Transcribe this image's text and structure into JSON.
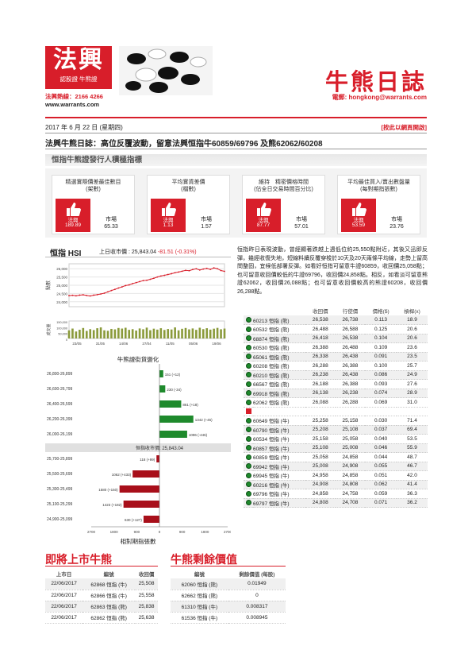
{
  "header": {
    "logo_title": "法興",
    "logo_sub": "認股證 牛熊證",
    "hotline": "法興熱線：2166 4266",
    "website": "www.warrants.com",
    "title": "牛熊日誌",
    "email": "電郵: hongkong@warrants.com",
    "date": "2017 年 6 月 22 日 (星期四)",
    "web_link": "[按此以網頁開啟]",
    "headline": "法興牛熊日誌：高位反覆波動，留意法興恒指牛60859/69796 及熊62062/60208"
  },
  "indicators": {
    "section_title": "恒指牛熊證發行人積極指標",
    "cards": [
      {
        "label": "精選實際價差最佳數目\n(架數)",
        "sg_label": "法興",
        "sg_value": "189.89",
        "market_label": "市場",
        "market_value": "65.33"
      },
      {
        "label": "平均實貨差價\n(檔數)",
        "sg_label": "法興",
        "sg_value": "1.13",
        "market_label": "市場",
        "market_value": "1.57"
      },
      {
        "label": "維持　精密價格時間\n(佔全日交易時間百分比)",
        "sg_label": "法興",
        "sg_value": "87.77",
        "market_label": "市場",
        "market_value": "57.01"
      },
      {
        "label": "平均最佳買入/賣出數盤量\n(每對期指張數)",
        "sg_label": "法興",
        "sg_value": "53.59",
        "market_label": "市場",
        "market_value": "23.76"
      }
    ]
  },
  "hsi": {
    "name": "恒指 HSI",
    "close_label": "上日收市價 : 25,843.04",
    "change": "-81.51 (-0.31%)"
  },
  "chart_data": [
    {
      "type": "line",
      "title": "",
      "ylabel": "點數",
      "x_ticks": [
        "23/05",
        "31/05",
        "14/06",
        "27/04",
        "11/05",
        "05/06",
        "19/06"
      ],
      "y_ticks": [
        24000,
        24500,
        25000,
        25500,
        26000
      ],
      "ylim": [
        23700,
        26300
      ],
      "values": [
        24370,
        24390,
        24360,
        24400,
        24420,
        24380,
        24350,
        24400,
        24430,
        24470,
        24520,
        24600,
        24680,
        24750,
        24830,
        24900,
        24980,
        25020,
        25100,
        25160,
        25220,
        25280,
        25300,
        25360,
        25420,
        25500,
        25560,
        25600,
        25650,
        25700,
        25760,
        25800,
        25850,
        25900,
        25880,
        25950,
        26000,
        25920,
        25980,
        26020,
        25960,
        26050,
        26000,
        25890,
        25843
      ],
      "volume_ylabel": "成交量",
      "volume_ticks": [
        "150,000",
        "100,000",
        "50,000",
        "0"
      ],
      "volume": [
        70,
        85,
        60,
        75,
        90,
        65,
        80,
        72,
        88,
        95,
        70,
        66,
        82,
        78,
        90,
        85,
        92,
        74,
        80,
        68,
        86,
        79,
        93,
        71,
        84,
        76,
        88,
        73,
        81,
        77,
        95,
        70,
        83,
        90,
        78,
        86,
        74,
        92,
        80,
        88,
        76,
        84,
        91,
        79,
        85
      ]
    },
    {
      "type": "bar",
      "title": "牛熊證街貨變化",
      "xlabel": "相對期指張數",
      "x_ticks": [
        "2700",
        "1800",
        "900",
        "0",
        "900",
        "1800",
        "2700"
      ],
      "xlim": [
        -2700,
        2700
      ],
      "categories": [
        "26,800-26,899",
        "26,600-26,799",
        "26,400-26,599",
        "26,200-26,399",
        "26,000-26,199",
        "25,700-25,899",
        "25,500-25,699",
        "25,300-25,499",
        "25,100-25,299",
        "24,900-25,099"
      ],
      "values": [
        151,
        230,
        861,
        1342,
        1096,
        -118,
        -1062,
        -1580,
        -1423,
        -630
      ],
      "data_labels": [
        "151 (+12)",
        "230 (-34)",
        "861 (+18)",
        "1342 (+45)",
        "1096 (-446)",
        "118 (+99)",
        "1062 (+433)",
        "1580 (+150)",
        "1423 (+182)",
        "630 (+127)"
      ],
      "divider_label": "恒指收市價: 25,843.04"
    }
  ],
  "commentary": "恒指昨日表現波動，曾經顯著跌越上週低位約25,550點附近，其後又迅即反彈，幾經收復失地，短線料續反覆穿梭於10天及20天兩條平均線，走勢上留高問整固，宜候低部署反彈。如看好恒指可留意牛證60859，收回價25,058點；也可留意收回價較低的牛證69796，收回價24,858點。相反，如看淡可留意熊證62062，收回價26,088點；也可留意收回價較高的熊證60208，收回價26,288點。",
  "warrants": {
    "headers": [
      "",
      "",
      "收回價",
      "行使價",
      "價格($)",
      "槓桿(x)"
    ],
    "bears": [
      {
        "code": "60213 恒指 (熊)",
        "call": "26,538",
        "strike": "26,738",
        "price": "0.113",
        "lev": "18.9"
      },
      {
        "code": "60532 恒指 (熊)",
        "call": "26,488",
        "strike": "26,588",
        "price": "0.125",
        "lev": "20.6"
      },
      {
        "code": "68874 恒指 (熊)",
        "call": "26,418",
        "strike": "26,538",
        "price": "0.104",
        "lev": "20.6"
      },
      {
        "code": "60530 恒指 (熊)",
        "call": "26,388",
        "strike": "26,488",
        "price": "0.109",
        "lev": "23.6"
      },
      {
        "code": "65061 恒指 (熊)",
        "call": "26,338",
        "strike": "26,438",
        "price": "0.091",
        "lev": "23.5"
      },
      {
        "code": "60208 恒指 (熊)",
        "call": "26,288",
        "strike": "26,388",
        "price": "0.100",
        "lev": "25.7"
      },
      {
        "code": "60210 恒指 (熊)",
        "call": "26,238",
        "strike": "26,438",
        "price": "0.086",
        "lev": "24.9"
      },
      {
        "code": "66567 恒指 (熊)",
        "call": "26,188",
        "strike": "26,388",
        "price": "0.093",
        "lev": "27.6"
      },
      {
        "code": "69918 恒指 (熊)",
        "call": "26,138",
        "strike": "26,238",
        "price": "0.074",
        "lev": "28.9"
      },
      {
        "code": "62062 恒指 (熊)",
        "call": "26,088",
        "strike": "26,288",
        "price": "0.069",
        "lev": "31.0"
      }
    ],
    "bulls": [
      {
        "code": "60649 恒指 (牛)",
        "call": "25,258",
        "strike": "25,158",
        "price": "0.030",
        "lev": "71.4"
      },
      {
        "code": "60790 恒指 (牛)",
        "call": "25,208",
        "strike": "25,108",
        "price": "0.037",
        "lev": "69.4"
      },
      {
        "code": "60534 恒指 (牛)",
        "call": "25,158",
        "strike": "25,058",
        "price": "0.040",
        "lev": "53.5"
      },
      {
        "code": "60857 恒指 (牛)",
        "call": "25,108",
        "strike": "25,008",
        "price": "0.046",
        "lev": "55.9"
      },
      {
        "code": "60859 恒指 (牛)",
        "call": "25,058",
        "strike": "24,858",
        "price": "0.044",
        "lev": "48.7"
      },
      {
        "code": "69942 恒指 (牛)",
        "call": "25,008",
        "strike": "24,908",
        "price": "0.055",
        "lev": "46.7"
      },
      {
        "code": "69945 恒指 (牛)",
        "call": "24,958",
        "strike": "24,858",
        "price": "0.051",
        "lev": "42.0"
      },
      {
        "code": "60216 恒指 (牛)",
        "call": "24,908",
        "strike": "24,808",
        "price": "0.062",
        "lev": "41.4"
      },
      {
        "code": "69796 恒指 (牛)",
        "call": "24,858",
        "strike": "24,758",
        "price": "0.059",
        "lev": "36.3"
      },
      {
        "code": "69797 恒指 (牛)",
        "call": "24,808",
        "strike": "24,708",
        "price": "0.071",
        "lev": "36.2"
      }
    ]
  },
  "upcoming": {
    "title": "即將上市牛熊",
    "headers": [
      "上市日",
      "編號",
      "收回價"
    ],
    "rows": [
      [
        "22/06/2017",
        "62868 恒指 (牛)",
        "25,508"
      ],
      [
        "22/06/2017",
        "62866 恒指 (牛)",
        "25,558"
      ],
      [
        "22/06/2017",
        "62863 恒指 (熊)",
        "25,838"
      ],
      [
        "22/06/2017",
        "62862 恒指 (熊)",
        "25,638"
      ]
    ]
  },
  "residual": {
    "title": "牛熊剩餘價值",
    "headers": [
      "編號",
      "剩餘價值 (每股)"
    ],
    "rows": [
      [
        "62060 恒指 (熊)",
        "0.01949"
      ],
      [
        "62662 恒指 (熊)",
        "0"
      ],
      [
        "61310 恒指 (牛)",
        "0.008317"
      ],
      [
        "61536 恒指 (牛)",
        "0.008945"
      ]
    ]
  },
  "colors": {
    "brand": "#d81e2a",
    "bull_bar": "#1e8a2c",
    "bear_bar": "#a80f1a",
    "line": "#d81e2a"
  }
}
